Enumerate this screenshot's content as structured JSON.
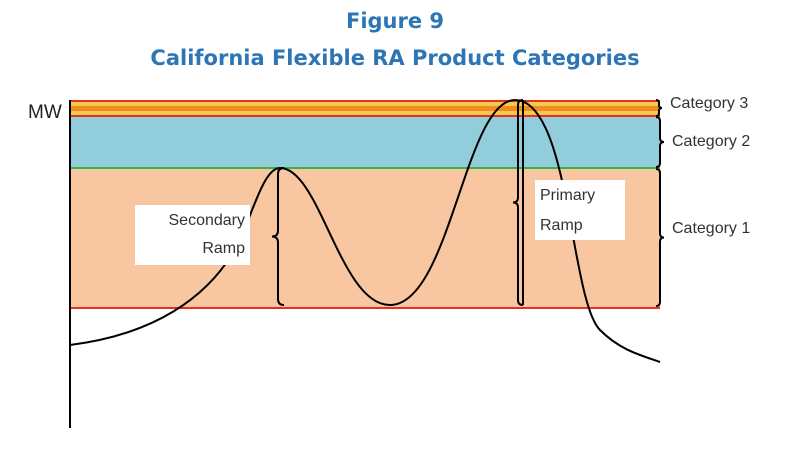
{
  "header": {
    "title": "Figure 9",
    "subtitle": "California Flexible RA Product Categories"
  },
  "diagram": {
    "axis_label": "MW",
    "categories": [
      "Category 3",
      "Category 2",
      "Category 1"
    ],
    "ramps": [
      {
        "lines": [
          "Secondary",
          "Ramp"
        ]
      },
      {
        "lines": [
          "Primary",
          "Ramp"
        ]
      }
    ]
  }
}
